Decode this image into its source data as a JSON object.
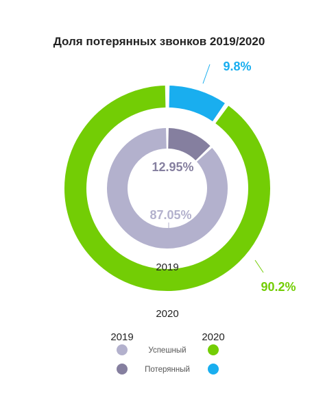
{
  "chart_data": {
    "type": "pie",
    "subtype": "nested-donut",
    "title": "Доля потерянных звонков 2019/2020",
    "categories": [
      "Успешный",
      "Потерянный"
    ],
    "rings": [
      {
        "name": "2020",
        "position": "outer",
        "values": [
          90.2,
          9.8
        ],
        "labels": [
          "90.2%",
          "9.8%"
        ],
        "colors": [
          "#73cd05",
          "#19aeef"
        ]
      },
      {
        "name": "2019",
        "position": "inner",
        "values": [
          87.05,
          12.95
        ],
        "labels": [
          "87.05%",
          "12.95%"
        ],
        "colors": [
          "#b3b1cd",
          "#857f9f"
        ]
      }
    ],
    "legend": {
      "position": "bottom",
      "columns": [
        "2019",
        "2020"
      ],
      "rows": [
        "Успешный",
        "Потерянный"
      ]
    }
  }
}
